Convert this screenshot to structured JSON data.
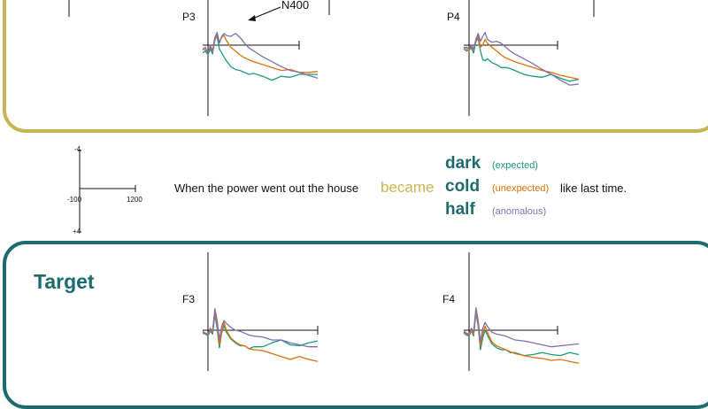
{
  "colors": {
    "expected": "#1a9a7f",
    "unexpected": "#e0700a",
    "anomalous": "#7a6fb4",
    "top_panel_border": "#c9b452",
    "bottom_panel_border": "#1d6b6e",
    "became": "#c9b452",
    "target_words": "#1d6b6e"
  },
  "labels": {
    "n400": "N400",
    "target_title": "Target",
    "electrodes": [
      "P3",
      "P4",
      "F3",
      "F4"
    ]
  },
  "sentence": {
    "before": "When the power went out the house",
    "verb": "became",
    "after": "like last time.",
    "targets": [
      {
        "word": "dark",
        "condition": "(expected)"
      },
      {
        "word": "cold",
        "condition": "(unexpected)"
      },
      {
        "word": "half",
        "condition": "(anomalous)"
      }
    ]
  },
  "scale_legend": {
    "y_top": "-4",
    "y_bottom": "+4",
    "x_left": "-100",
    "x_right": "1200"
  },
  "chart_data": {
    "type": "line",
    "x_unit": "ms",
    "y_unit": "µV",
    "xlim": [
      -100,
      1200
    ],
    "ylim": [
      -4,
      4
    ],
    "y_axis_inverted": true,
    "series_names": [
      "expected",
      "unexpected",
      "anomalous"
    ],
    "x": [
      -100,
      -50,
      0,
      25,
      50,
      75,
      100,
      125,
      150,
      175,
      200,
      250,
      300,
      350,
      400,
      450,
      500,
      600,
      700,
      800,
      900,
      1000,
      1100,
      1200
    ],
    "plots": [
      {
        "electrode": "P3",
        "series": [
          {
            "name": "expected",
            "values": [
              0.8,
              0.6,
              1.0,
              0.4,
              0.9,
              -0.6,
              -0.9,
              0.4,
              0.8,
              1.2,
              1.6,
              2.2,
              2.5,
              2.6,
              2.8,
              3.0,
              2.9,
              3.2,
              3.6,
              3.2,
              3.3,
              3.0,
              3.0,
              3.0
            ]
          },
          {
            "name": "unexpected",
            "values": [
              0.3,
              0.5,
              0.7,
              0.2,
              0.7,
              -0.5,
              -1.2,
              -0.3,
              -0.8,
              -1.0,
              -0.5,
              0.2,
              0.6,
              1.0,
              1.3,
              1.5,
              1.7,
              2.0,
              2.3,
              2.6,
              2.5,
              2.8,
              2.8,
              2.7
            ]
          },
          {
            "name": "anomalous",
            "values": [
              0.5,
              0.2,
              0.9,
              0.0,
              0.6,
              -0.8,
              -1.3,
              -0.2,
              -0.9,
              -1.2,
              -1.0,
              -0.9,
              -1.2,
              -0.8,
              -0.2,
              0.3,
              0.6,
              1.2,
              1.7,
              2.2,
              2.6,
              2.8,
              3.1,
              3.4
            ]
          }
        ]
      },
      {
        "electrode": "P4",
        "series": [
          {
            "name": "expected",
            "values": [
              0.4,
              0.6,
              0.5,
              0.3,
              0.8,
              -0.4,
              -0.7,
              0.6,
              1.5,
              1.6,
              1.4,
              1.8,
              2.0,
              2.3,
              2.3,
              2.4,
              2.6,
              3.0,
              3.2,
              3.3,
              3.0,
              3.4,
              3.7,
              3.5
            ]
          },
          {
            "name": "unexpected",
            "values": [
              0.2,
              0.4,
              0.6,
              0.1,
              0.5,
              -0.5,
              -1.0,
              0.2,
              0.0,
              -0.6,
              -0.2,
              0.2,
              0.6,
              1.0,
              1.3,
              1.5,
              1.7,
              2.0,
              2.3,
              2.6,
              2.8,
              3.1,
              3.3,
              3.5
            ]
          },
          {
            "name": "anomalous",
            "values": [
              0.3,
              0.2,
              0.4,
              0.0,
              0.4,
              -0.6,
              -1.2,
              -0.4,
              -0.9,
              -1.3,
              -0.6,
              -0.3,
              -0.4,
              -0.2,
              0.2,
              0.6,
              0.9,
              1.4,
              1.9,
              2.5,
              3.0,
              3.6,
              4.1,
              4.0
            ]
          }
        ]
      },
      {
        "electrode": "F3",
        "series": [
          {
            "name": "expected",
            "values": [
              0.3,
              0.4,
              0.6,
              0.1,
              0.4,
              -1.6,
              -0.2,
              1.8,
              0.3,
              -0.5,
              0.2,
              0.9,
              1.3,
              1.6,
              1.6,
              1.9,
              1.7,
              1.7,
              1.3,
              1.0,
              1.5,
              1.6,
              1.3,
              1.1
            ]
          },
          {
            "name": "unexpected",
            "values": [
              0.2,
              0.3,
              0.5,
              0.0,
              0.2,
              -1.9,
              -0.6,
              1.5,
              0.2,
              -0.8,
              0.0,
              0.8,
              1.2,
              1.5,
              1.6,
              1.9,
              2.0,
              2.1,
              2.4,
              2.7,
              3.0,
              2.7,
              3.0,
              3.2
            ]
          },
          {
            "name": "anomalous",
            "values": [
              0.1,
              0.3,
              0.4,
              -0.2,
              0.1,
              -2.2,
              -1.0,
              1.0,
              -0.4,
              -1.0,
              -0.7,
              -0.3,
              0.0,
              0.1,
              0.3,
              0.5,
              0.6,
              0.7,
              1.0,
              1.0,
              1.3,
              1.5,
              1.7,
              1.7
            ]
          }
        ]
      },
      {
        "electrode": "F4",
        "series": [
          {
            "name": "expected",
            "values": [
              0.3,
              0.5,
              0.6,
              0.1,
              0.6,
              -1.8,
              -0.4,
              2.0,
              0.8,
              0.0,
              0.5,
              1.4,
              1.8,
              2.0,
              2.0,
              2.3,
              2.3,
              2.6,
              2.5,
              2.3,
              2.5,
              2.6,
              2.3,
              2.5
            ]
          },
          {
            "name": "unexpected",
            "values": [
              0.2,
              0.4,
              0.5,
              0.0,
              0.4,
              -2.0,
              -0.6,
              1.6,
              0.4,
              -0.4,
              0.2,
              1.2,
              1.6,
              1.8,
              2.0,
              2.2,
              2.4,
              2.6,
              2.8,
              2.9,
              3.1,
              3.0,
              3.2,
              3.4
            ]
          },
          {
            "name": "anomalous",
            "values": [
              0.1,
              0.3,
              0.4,
              -0.2,
              0.2,
              -2.3,
              -1.0,
              1.2,
              -0.2,
              -0.8,
              -0.4,
              0.2,
              0.4,
              0.5,
              0.6,
              0.8,
              1.0,
              1.1,
              1.3,
              1.5,
              1.7,
              1.6,
              1.5,
              1.4
            ]
          }
        ]
      }
    ]
  }
}
